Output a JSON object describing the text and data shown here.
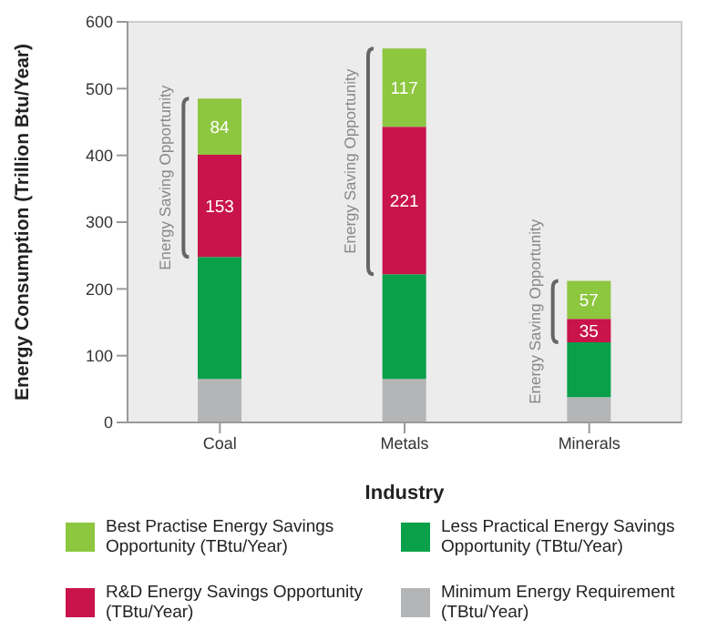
{
  "chart_data": {
    "type": "bar",
    "stacked": true,
    "xlabel": "Industry",
    "ylabel": "Energy Consumption (Trillion Btu/Year)",
    "categories": [
      "Coal",
      "Metals",
      "Minerals"
    ],
    "series": [
      {
        "name": "Minimum Energy Requirement (TBtu/Year)",
        "color": "#b4b5b7",
        "values": [
          65,
          65,
          38
        ]
      },
      {
        "name": "Less Practical Energy Savings Opportunity (TBtu/Year)",
        "color": "#0aa04a",
        "values": [
          183,
          157,
          82
        ]
      },
      {
        "name": "R&D Energy Savings Opportunity (TBtu/Year)",
        "color": "#c8134b",
        "values": [
          153,
          221,
          35
        ],
        "value_labels": [
          "153",
          "221",
          "35"
        ]
      },
      {
        "name": "Best Practise Energy Savings Opportunity (TBtu/Year)",
        "color": "#8dc63f",
        "values": [
          84,
          117,
          57
        ],
        "value_labels": [
          "84",
          "117",
          "57"
        ]
      }
    ],
    "ylim": [
      0,
      600
    ],
    "yticks": [
      0,
      100,
      200,
      300,
      400,
      500,
      600
    ],
    "legend": "bottom",
    "annotations": [
      "Energy Saving Opportunity",
      "Energy Saving Opportunity",
      "Energy Saving Opportunity"
    ]
  }
}
